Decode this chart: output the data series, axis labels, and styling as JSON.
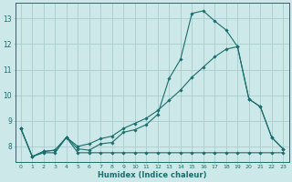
{
  "title": "",
  "xlabel": "Humidex (Indice chaleur)",
  "bg_color": "#cce8e8",
  "grid_color": "#aacccc",
  "line_color": "#1a6e6e",
  "xlim": [
    -0.5,
    23.5
  ],
  "ylim": [
    7.4,
    13.6
  ],
  "xticks": [
    0,
    1,
    2,
    3,
    4,
    5,
    6,
    7,
    8,
    9,
    10,
    11,
    12,
    13,
    14,
    15,
    16,
    17,
    18,
    19,
    20,
    21,
    22,
    23
  ],
  "yticks": [
    8,
    9,
    10,
    11,
    12,
    13
  ],
  "line1_x": [
    0,
    1,
    2,
    3,
    4,
    5,
    6,
    7,
    8,
    9,
    10,
    11,
    12,
    13,
    14,
    15,
    16,
    17,
    18,
    19,
    20,
    21,
    22,
    23
  ],
  "line1_y": [
    8.7,
    7.6,
    7.8,
    7.85,
    8.35,
    7.9,
    7.85,
    8.1,
    8.15,
    8.55,
    8.65,
    8.85,
    9.25,
    10.65,
    11.4,
    13.2,
    13.3,
    12.9,
    12.55,
    11.9,
    9.85,
    9.55,
    8.35,
    7.9
  ],
  "line2_x": [
    0,
    1,
    2,
    3,
    4,
    5,
    6,
    7,
    8,
    9,
    10,
    11,
    12,
    13,
    14,
    15,
    16,
    17,
    18,
    19,
    20,
    21,
    22,
    23
  ],
  "line2_y": [
    8.7,
    7.6,
    7.8,
    7.85,
    8.35,
    8.0,
    8.1,
    8.3,
    8.4,
    8.7,
    8.9,
    9.1,
    9.4,
    9.8,
    10.2,
    10.7,
    11.1,
    11.5,
    11.8,
    11.9,
    9.85,
    9.55,
    8.35,
    7.9
  ],
  "line3_x": [
    0,
    1,
    2,
    3,
    4,
    5,
    6,
    7,
    8,
    9,
    10,
    11,
    12,
    13,
    14,
    15,
    16,
    17,
    18,
    19,
    20,
    21,
    22,
    23
  ],
  "line3_y": [
    8.7,
    7.6,
    7.75,
    7.75,
    8.35,
    7.75,
    7.75,
    7.75,
    7.75,
    7.75,
    7.75,
    7.75,
    7.75,
    7.75,
    7.75,
    7.75,
    7.75,
    7.75,
    7.75,
    7.75,
    7.75,
    7.75,
    7.75,
    7.75
  ]
}
